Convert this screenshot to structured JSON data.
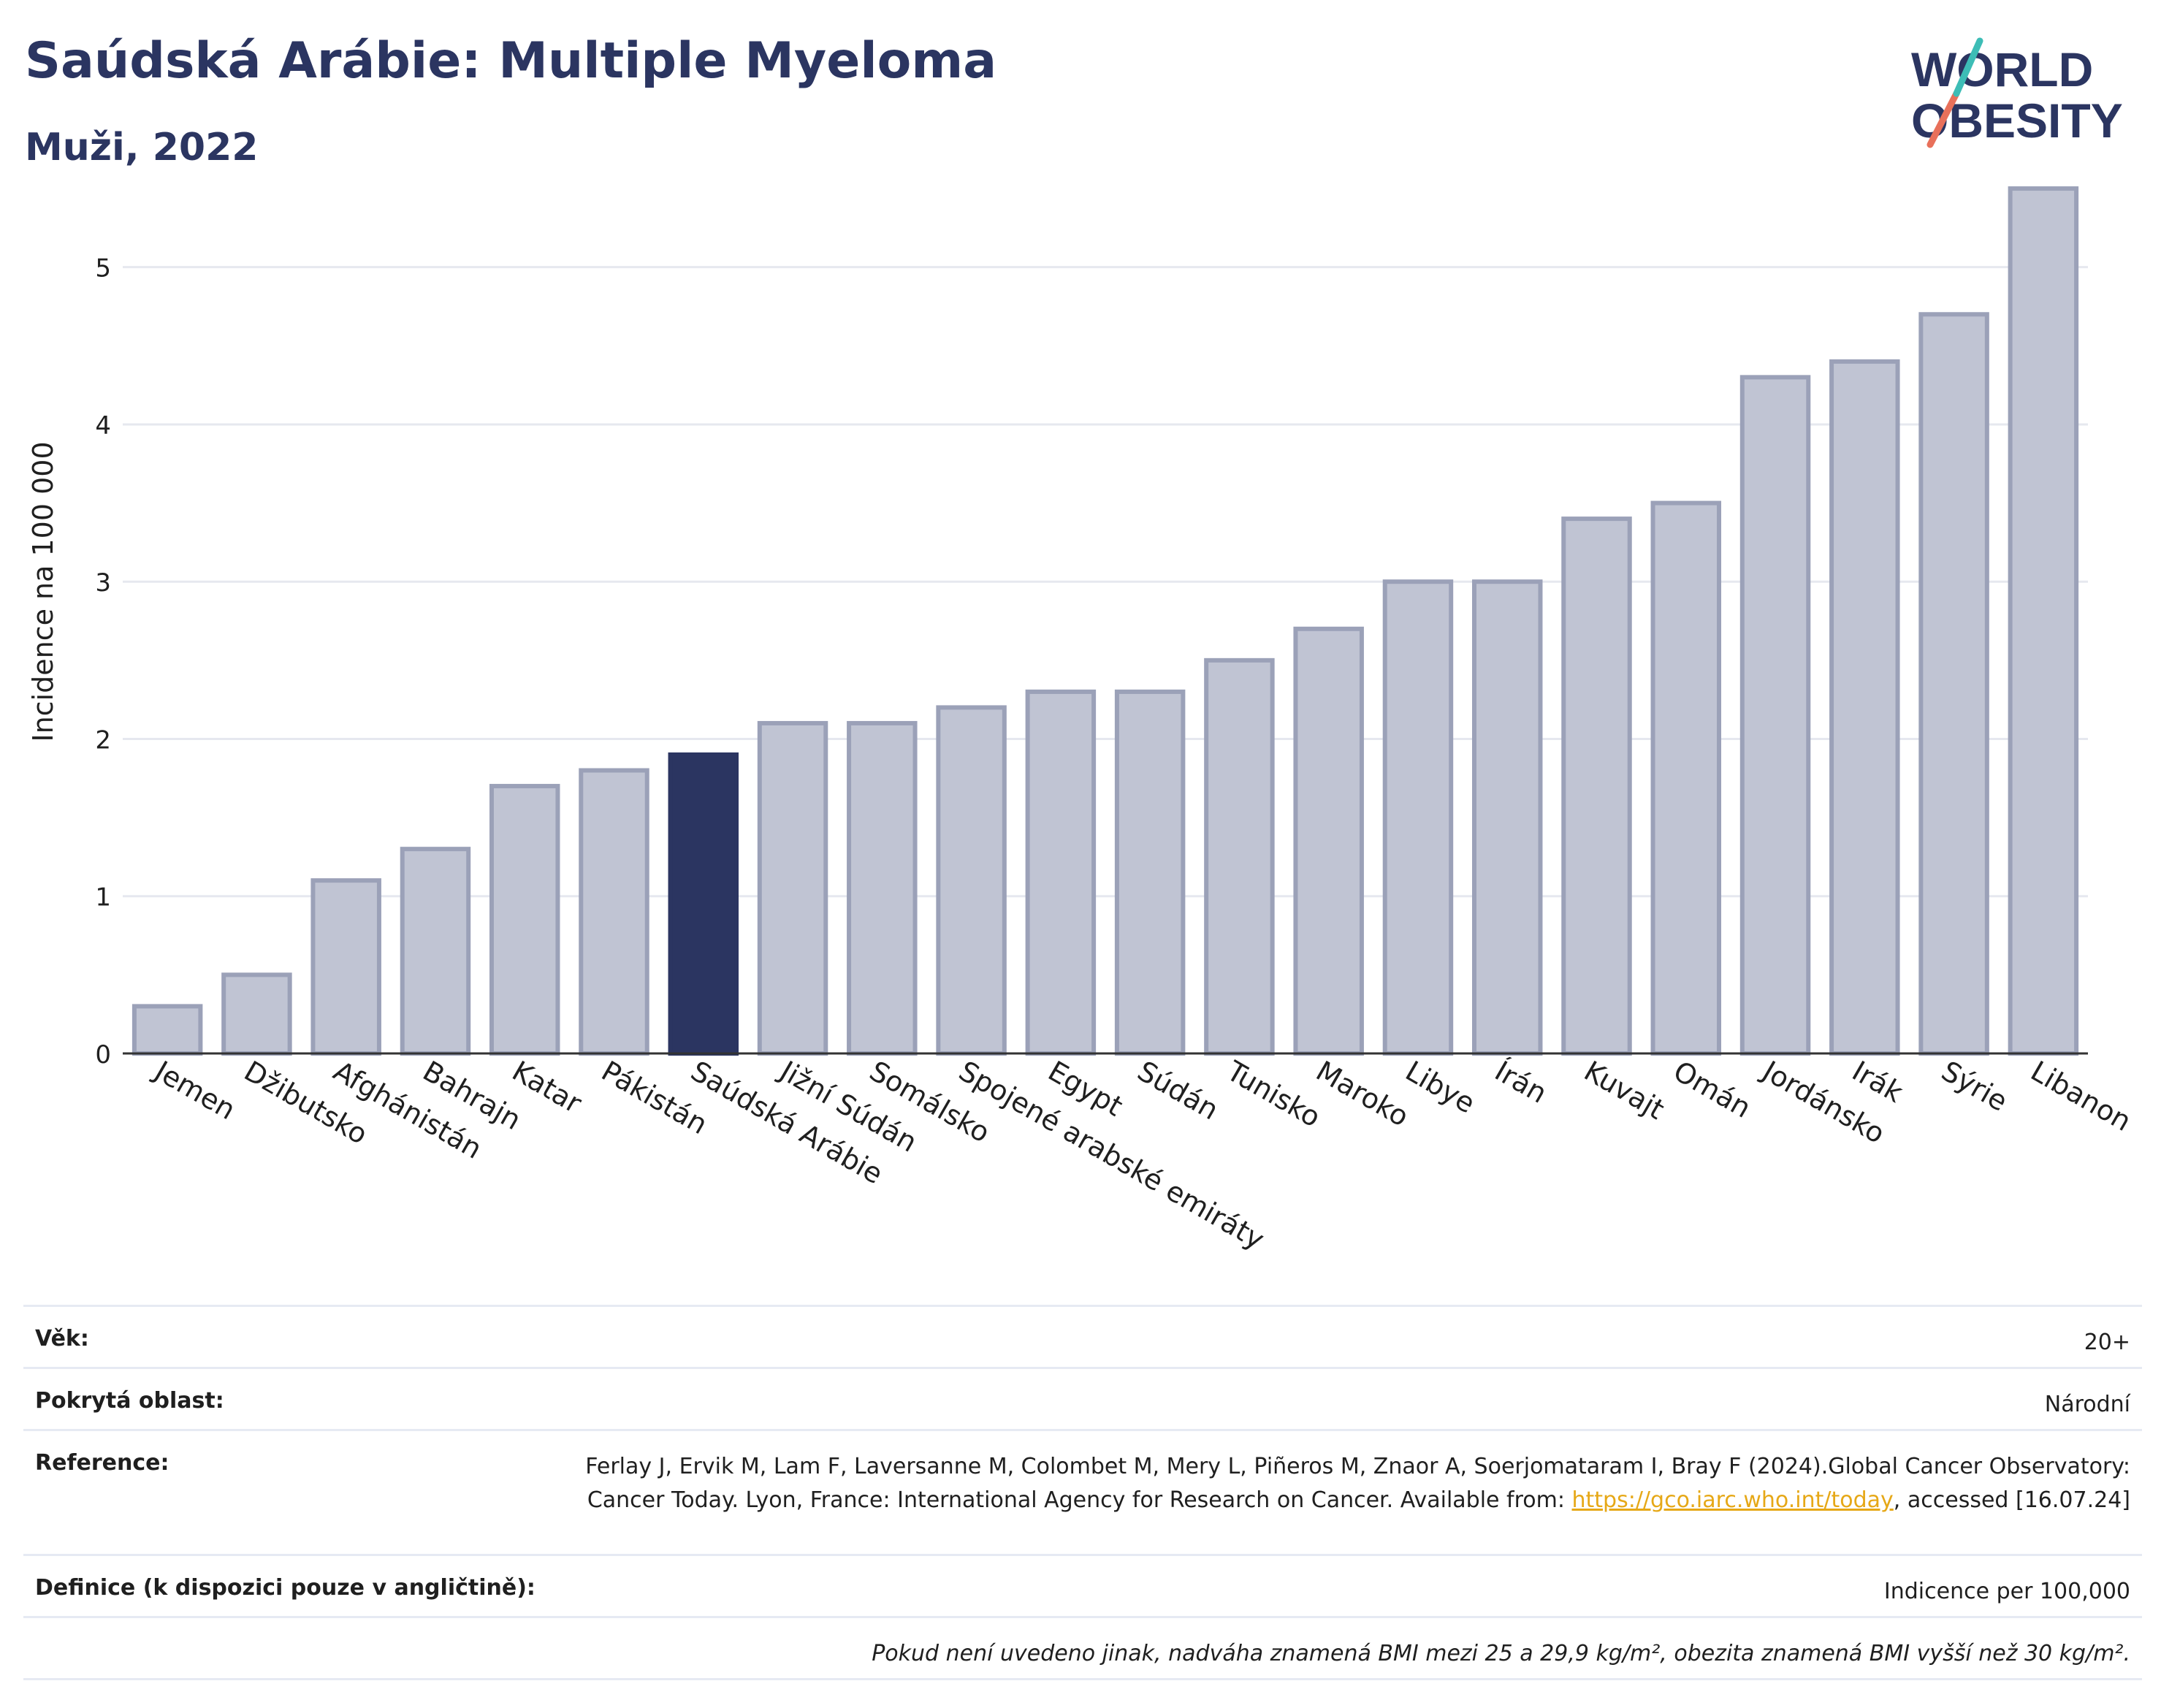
{
  "header": {
    "title": "Saúdská Arábie: Multiple Myeloma",
    "subtitle": "Muži, 2022"
  },
  "logo": {
    "line1": "WORLD",
    "line2": "OBESITY"
  },
  "colors": {
    "bar": "#c0c4d3",
    "bar_edge": "#9ba1b8",
    "highlight": "#2b3561",
    "title": "#2b3561",
    "link": "#e6a817"
  },
  "chart_data": {
    "type": "bar",
    "title": "Saúdská Arábie: Multiple Myeloma",
    "subtitle": "Muži, 2022",
    "ylabel": "Incidence na 100 000",
    "xlabel": "",
    "ylim": [
      0,
      5.7
    ],
    "yticks": [
      0,
      1,
      2,
      3,
      4,
      5
    ],
    "grid": true,
    "highlight": "Saúdská Arábie",
    "categories": [
      "Jemen",
      "Džibutsko",
      "Afghánistán",
      "Bahrajn",
      "Katar",
      "Pákistán",
      "Saúdská Arábie",
      "Jižní Súdán",
      "Somálsko",
      "Spojené arabské emiráty",
      "Egypt",
      "Súdán",
      "Tunisko",
      "Maroko",
      "Libye",
      "Írán",
      "Kuvajt",
      "Omán",
      "Jordánsko",
      "Irák",
      "Sýrie",
      "Libanon"
    ],
    "values": [
      0.3,
      0.5,
      1.1,
      1.3,
      1.7,
      1.8,
      1.9,
      2.1,
      2.1,
      2.2,
      2.3,
      2.3,
      2.5,
      2.7,
      3.0,
      3.0,
      3.4,
      3.5,
      4.3,
      4.4,
      4.7,
      5.5
    ]
  },
  "footer": {
    "rows": [
      {
        "label": "Věk:",
        "value": "20+"
      },
      {
        "label": "Pokrytá oblast:",
        "value": "Národní"
      },
      {
        "label": "Reference:",
        "value_pre": "Ferlay J, Ervik M, Lam F, Laversanne M, Colombet M, Mery L, Piñeros M, Znaor A, Soerjomataram I, Bray F (2024).Global Cancer Observatory: Cancer Today. Lyon, France: International Agency for Research on Cancer. Available from: ",
        "link": "https://gco.iarc.who.int/today",
        "value_post": ", accessed [16.07.24]"
      },
      {
        "label": "Definice (k dispozici pouze v angličtině):",
        "value": "Indicence per 100,000"
      }
    ],
    "note": "Pokud není uvedeno jinak, nadváha znamená BMI mezi 25 a 29,9 kg/m², obezita znamená BMI vyšší než 30 kg/m²."
  }
}
